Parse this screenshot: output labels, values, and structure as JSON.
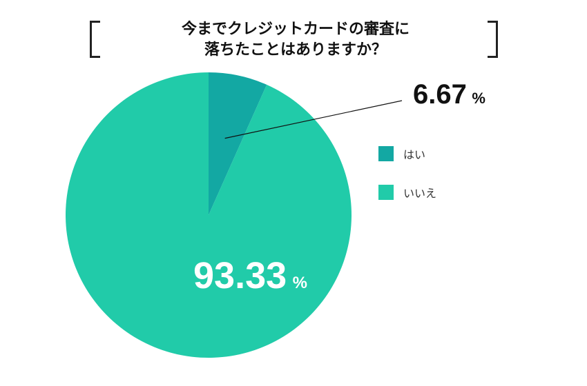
{
  "chart_data": {
    "type": "pie",
    "title": [
      "今までクレジットカードの審査に",
      "落ちたことはありますか？"
    ],
    "slices": [
      {
        "label": "はい",
        "value": 6.67,
        "color": "#13a8a3",
        "value_text": "6.67",
        "unit": "%"
      },
      {
        "label": "いいえ",
        "value": 93.33,
        "color": "#21cba9",
        "value_text": "93.33",
        "unit": "%"
      }
    ],
    "start_angle_deg": 0,
    "direction": "clockwise",
    "legend_position": "right"
  }
}
